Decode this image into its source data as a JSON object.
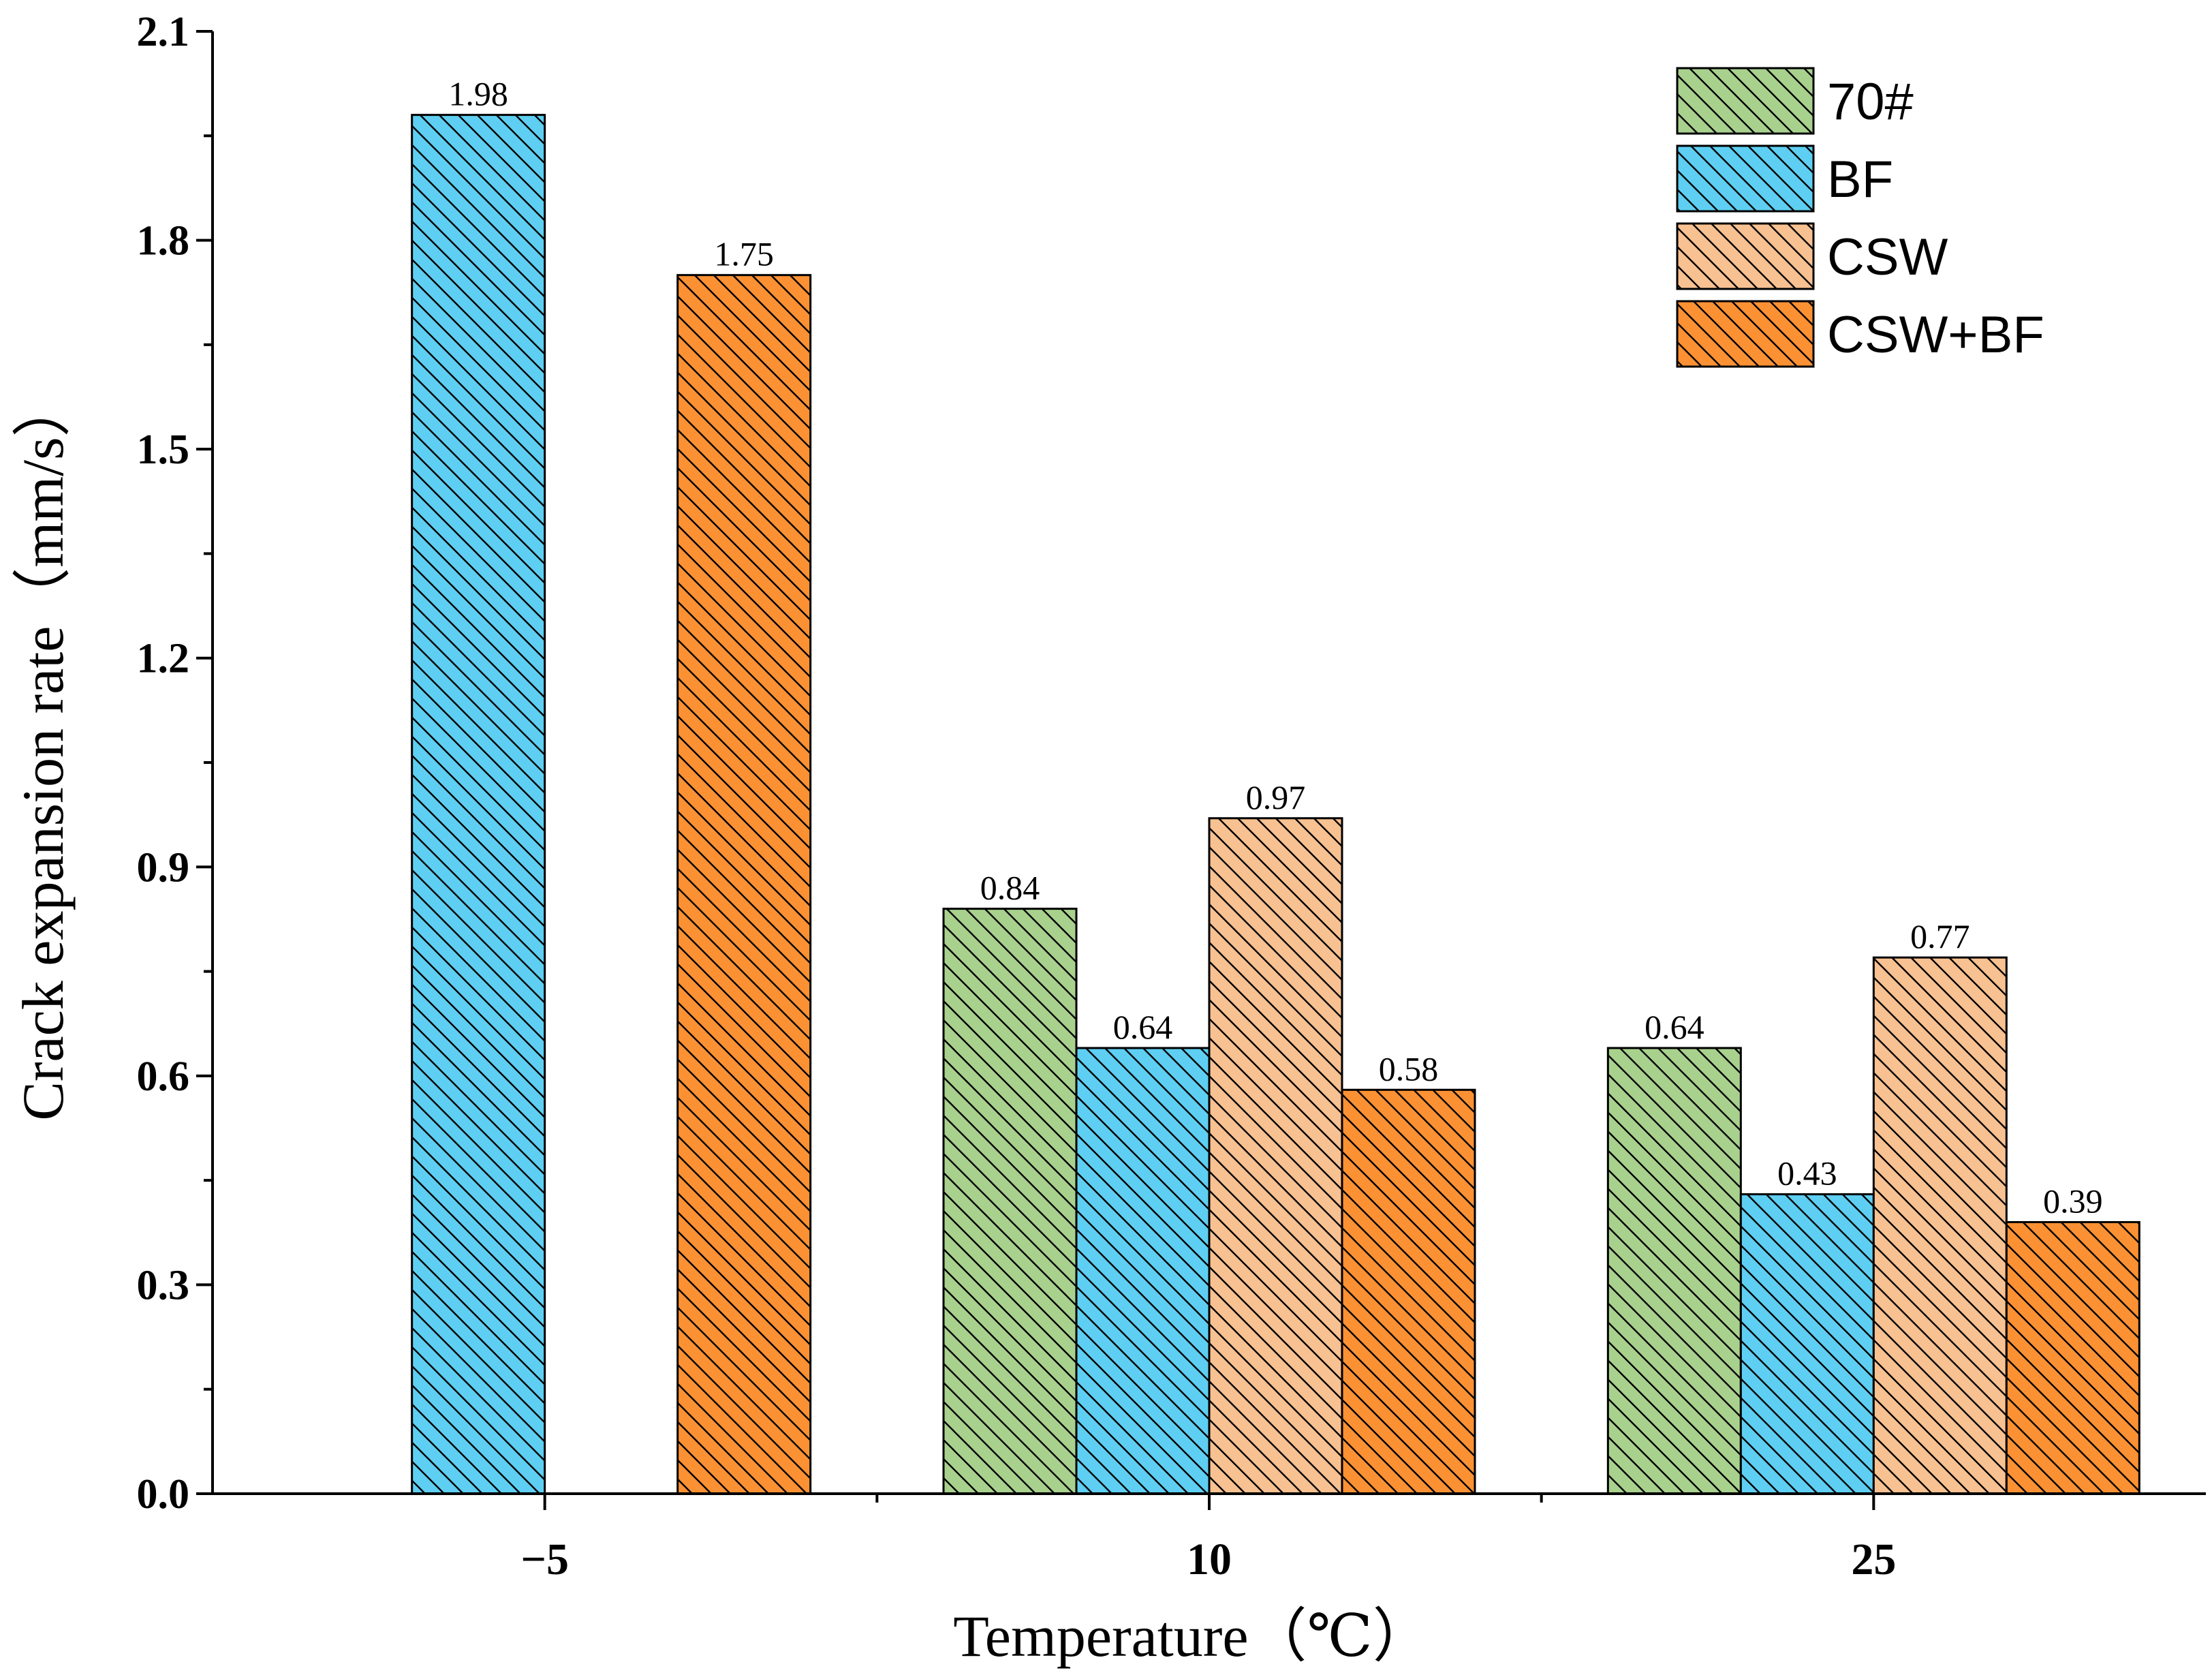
{
  "chart_data": {
    "type": "bar",
    "title": "",
    "xlabel": "Temperature（℃）",
    "ylabel": "Crack expansion rate（mm/s）",
    "categories": [
      "−5",
      "10",
      "25"
    ],
    "ylim": [
      0,
      2.1
    ],
    "yticks": [
      "0.0",
      "0.3",
      "0.6",
      "0.9",
      "1.2",
      "1.5",
      "1.8",
      "2.1"
    ],
    "legend_position": "top-right",
    "grid": false,
    "series": [
      {
        "name": "70#",
        "color": "#a9d18e",
        "values": [
          null,
          0.84,
          0.64
        ],
        "labels": [
          "",
          "0.84",
          "0.64"
        ]
      },
      {
        "name": "BF",
        "color": "#5ecff2",
        "values": [
          1.98,
          0.64,
          0.43
        ],
        "labels": [
          "1.98",
          "0.64",
          "0.43"
        ]
      },
      {
        "name": "CSW",
        "color": "#f8c191",
        "values": [
          null,
          0.97,
          0.77
        ],
        "labels": [
          "",
          "0.97",
          "0.77"
        ]
      },
      {
        "name": "CSW+BF",
        "color": "#fb9133",
        "values": [
          1.75,
          0.58,
          0.39
        ],
        "labels": [
          "1.75",
          "0.58",
          "0.39"
        ]
      }
    ]
  }
}
